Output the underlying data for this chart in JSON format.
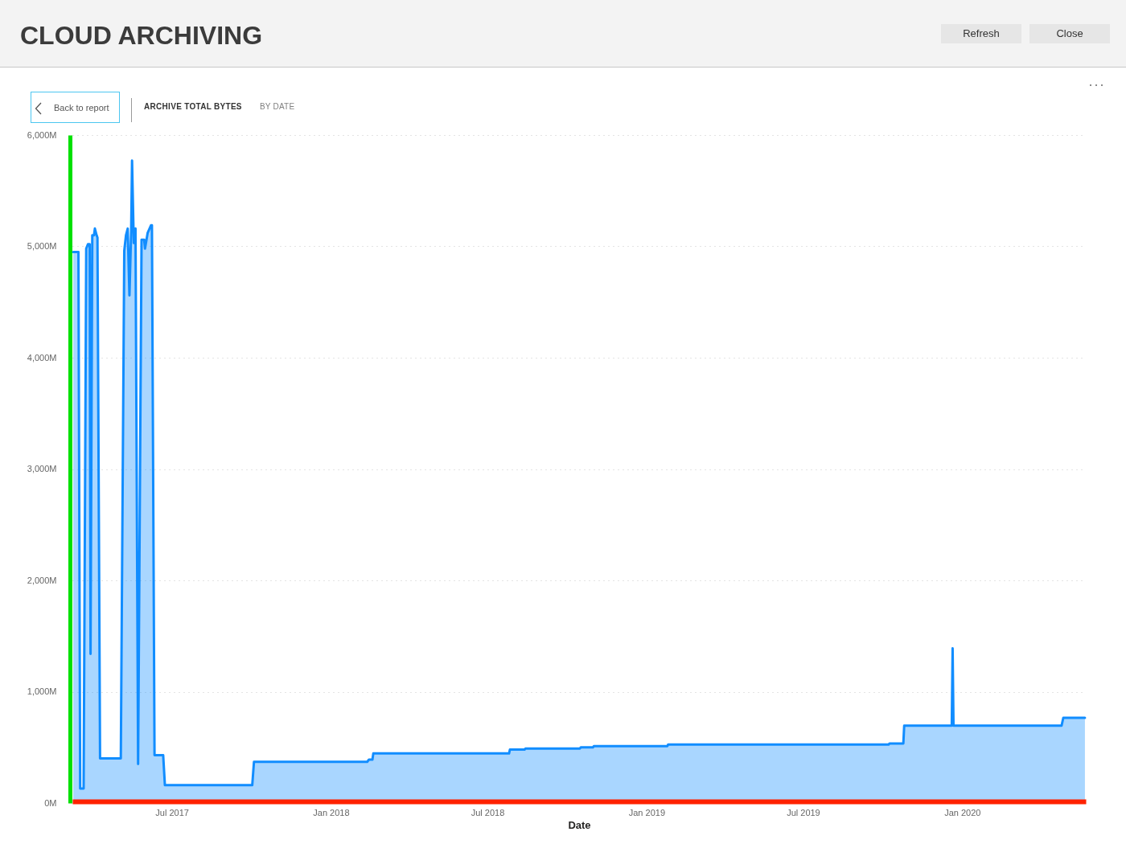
{
  "chart_data": {
    "type": "area",
    "title": "CLOUD ARCHIVING",
    "subtitle": "ARCHIVE TOTAL BYTES",
    "annotations": [
      "BY DATE",
      "Back to report",
      "Refresh",
      "Close"
    ],
    "xlabel": "Date",
    "x": [
      "2017-03-09",
      "2017-03-15",
      "2017-03-17",
      "2017-03-21",
      "2017-03-24",
      "2017-03-26",
      "2017-03-28",
      "2017-03-29",
      "2017-03-31",
      "2017-04-02",
      "2017-04-03",
      "2017-04-05",
      "2017-04-06",
      "2017-04-09",
      "2017-05-03",
      "2017-05-07",
      "2017-05-09",
      "2017-05-11",
      "2017-05-13",
      "2017-05-15",
      "2017-05-16",
      "2017-05-18",
      "2017-05-20",
      "2017-05-23",
      "2017-05-27",
      "2017-05-30",
      "2017-05-31",
      "2017-06-03",
      "2017-06-07",
      "2017-06-08",
      "2017-06-11",
      "2017-06-21",
      "2017-06-23",
      "2017-10-02",
      "2017-10-04",
      "2018-02-12",
      "2018-02-14",
      "2018-02-18",
      "2018-02-19",
      "2018-07-26",
      "2018-07-27",
      "2018-08-13",
      "2018-08-14",
      "2018-10-16",
      "2018-10-17",
      "2018-10-31",
      "2018-11-01",
      "2019-01-25",
      "2019-01-26",
      "2019-10-08",
      "2019-10-09",
      "2019-10-25",
      "2019-10-26",
      "2019-12-20",
      "2019-12-21",
      "2019-12-22",
      "2020-04-25",
      "2020-04-27",
      "2020-05-22"
    ],
    "series": [
      {
        "color": "#118dff",
        "values": [
          4950,
          4950,
          130,
          130,
          4980,
          5020,
          5020,
          1340,
          5100,
          5100,
          5160,
          5100,
          5080,
          400,
          400,
          4960,
          5100,
          5160,
          4560,
          5150,
          5770,
          5030,
          5160,
          350,
          5060,
          5060,
          4980,
          5120,
          5190,
          5190,
          430,
          430,
          160,
          160,
          370,
          370,
          390,
          390,
          445,
          445,
          480,
          480,
          490,
          490,
          500,
          500,
          510,
          510,
          525,
          525,
          535,
          535,
          695,
          695,
          1390,
          695,
          695,
          765,
          765
        ]
      }
    ],
    "xlim": [
      "2017-03-08",
      "2020-05-23"
    ],
    "ylim": [
      0,
      6000
    ],
    "xticks": [
      {
        "value": "2017-07-01",
        "label": "Jul 2017"
      },
      {
        "value": "2018-01-01",
        "label": "Jan 2018"
      },
      {
        "value": "2018-07-01",
        "label": "Jul 2018"
      },
      {
        "value": "2019-01-01",
        "label": "Jan 2019"
      },
      {
        "value": "2019-07-01",
        "label": "Jul 2019"
      },
      {
        "value": "2020-01-01",
        "label": "Jan 2020"
      }
    ],
    "yticks": [
      {
        "value": 0,
        "label": "0M"
      },
      {
        "value": 1000,
        "label": "1,000M"
      },
      {
        "value": 2000,
        "label": "2,000M"
      },
      {
        "value": 3000,
        "label": "3,000M"
      },
      {
        "value": 4000,
        "label": "4,000M"
      },
      {
        "value": 5000,
        "label": "5,000M"
      },
      {
        "value": 6000,
        "label": "6,000M"
      }
    ],
    "grid": "y"
  }
}
